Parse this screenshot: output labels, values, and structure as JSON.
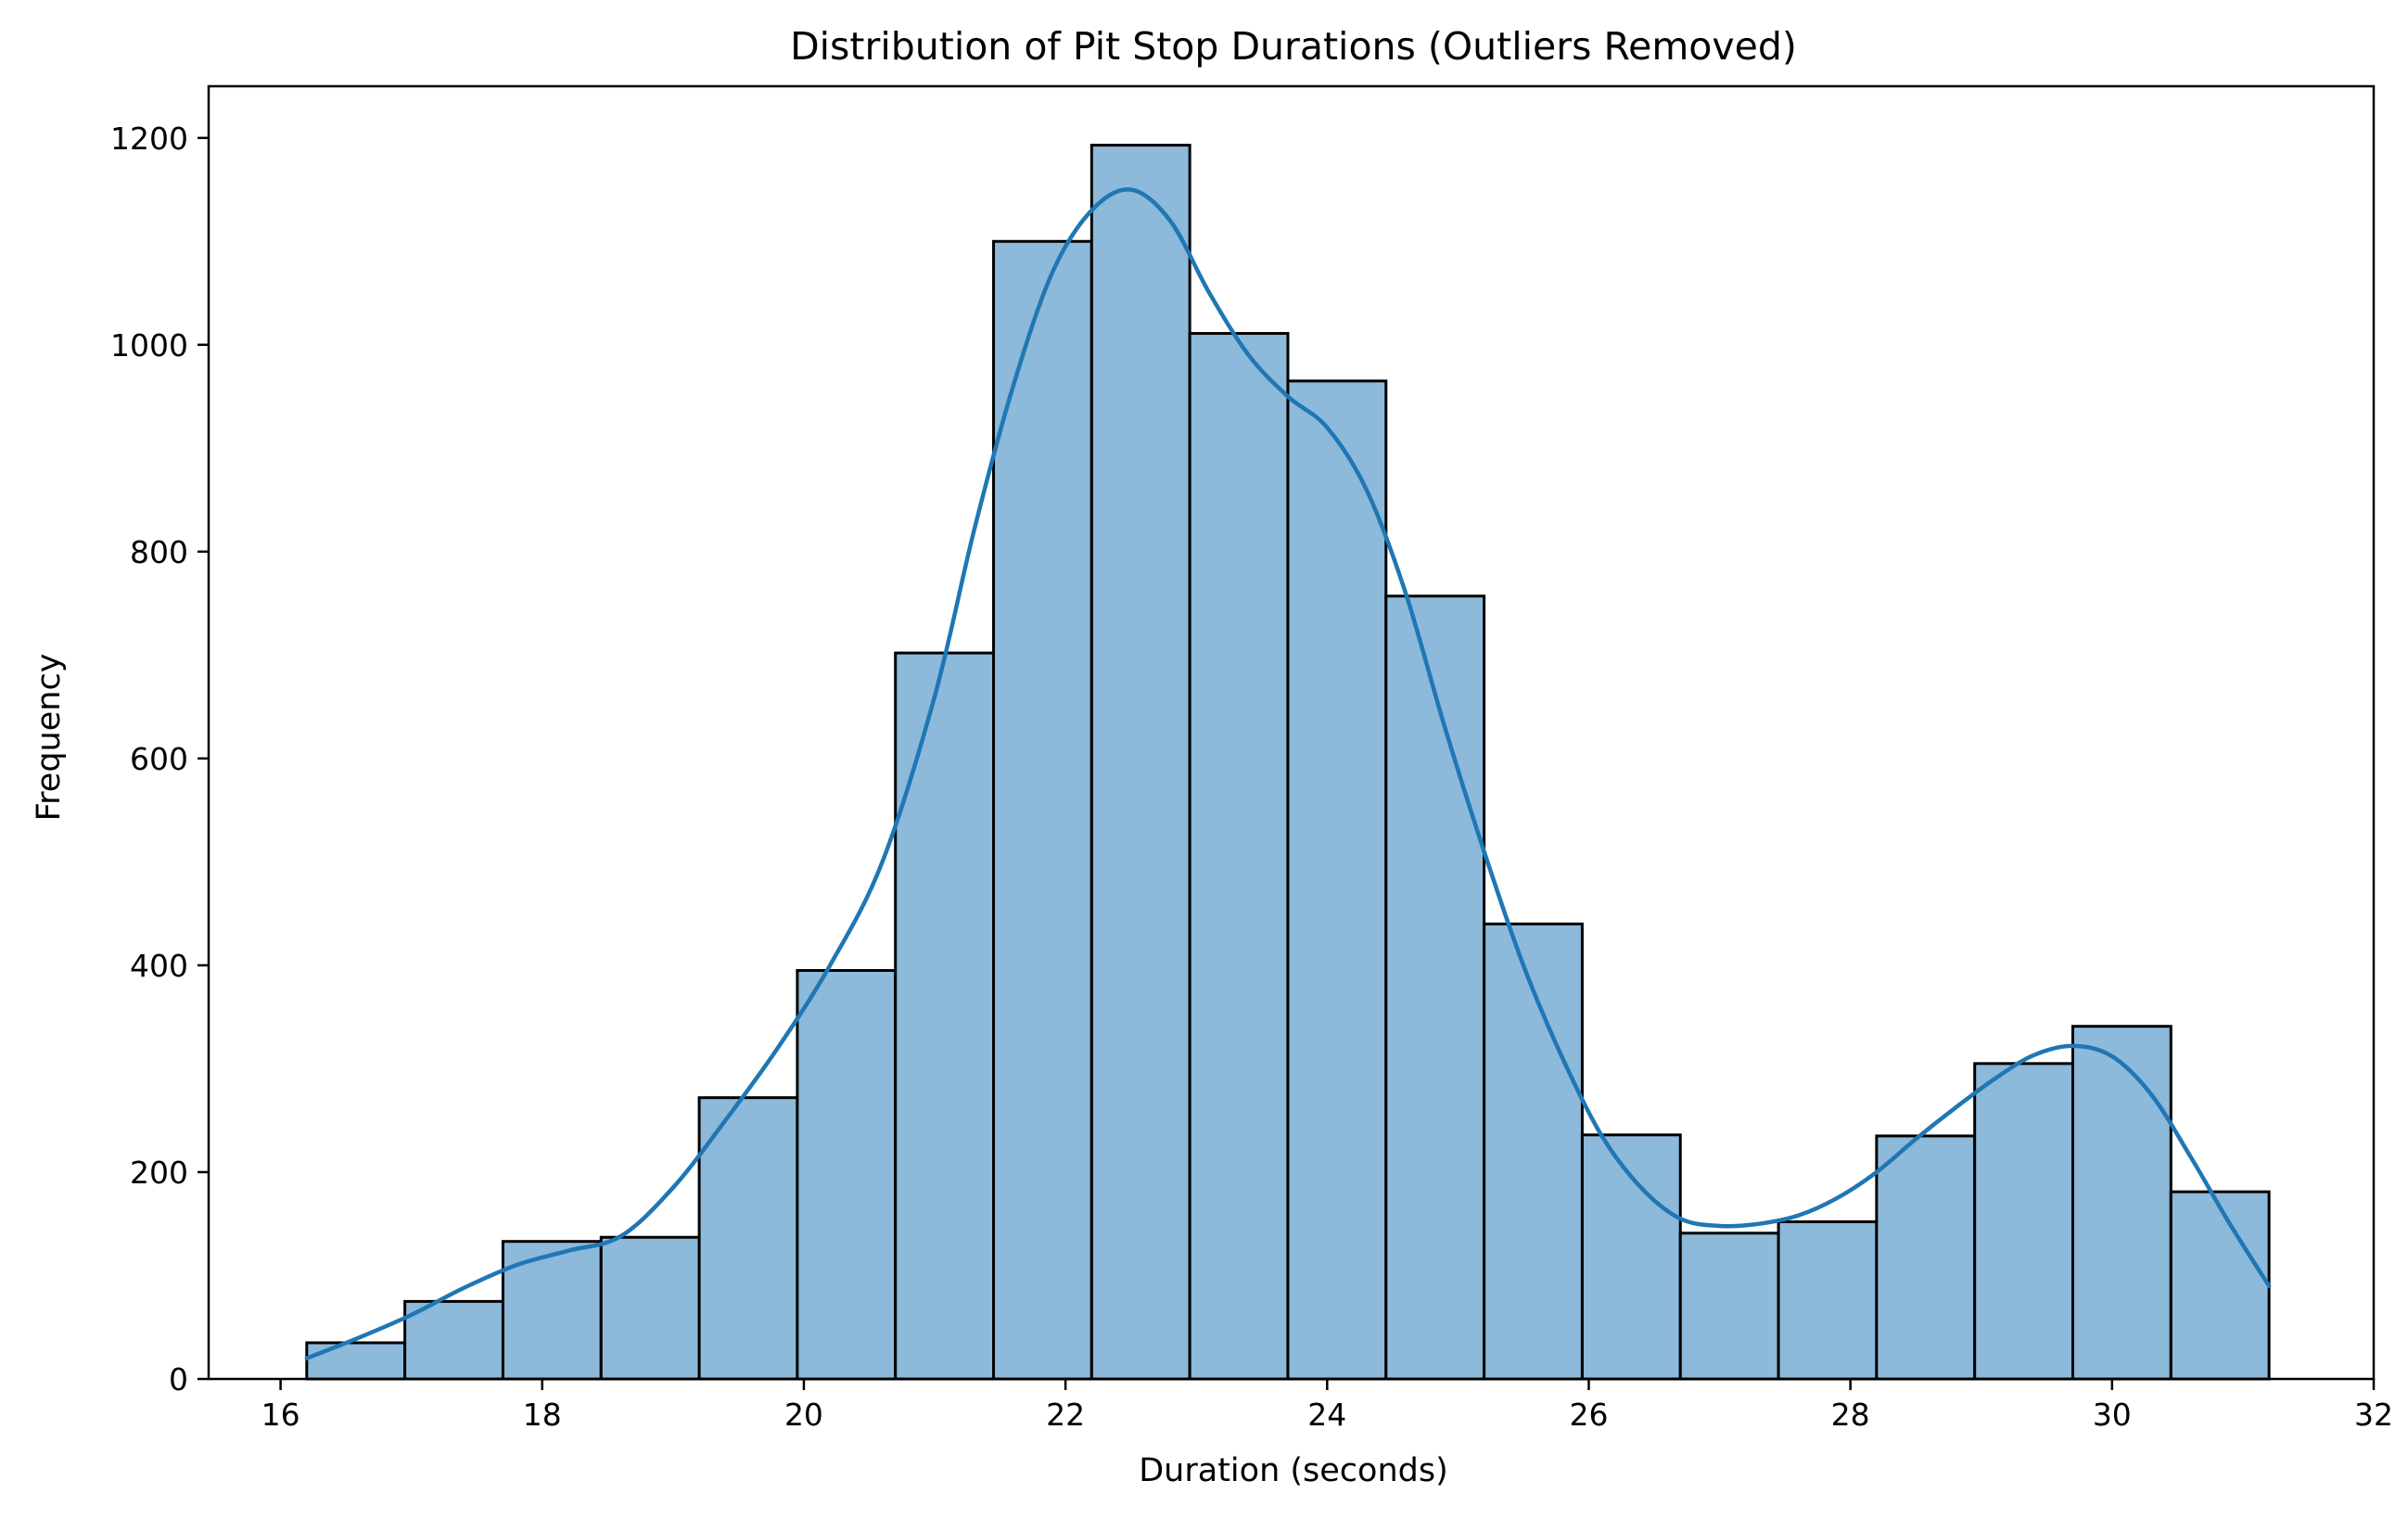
{
  "chart_data": {
    "type": "histogram",
    "title": "Distribution of Pit Stop Durations (Outliers Removed)",
    "xlabel": "Duration (seconds)",
    "ylabel": "Frequency",
    "xlim": [
      15.45,
      32.0
    ],
    "ylim": [
      0,
      1250
    ],
    "xticks": [
      16,
      18,
      20,
      22,
      24,
      26,
      28,
      30,
      32
    ],
    "yticks": [
      0,
      200,
      400,
      600,
      800,
      1000,
      1200
    ],
    "bin_edges": [
      16.2,
      16.95,
      17.7,
      18.45,
      19.2,
      19.95,
      20.7,
      21.45,
      22.2,
      22.95,
      23.7,
      24.45,
      25.2,
      25.95,
      26.7,
      27.45,
      28.2,
      28.95,
      29.7,
      30.45,
      31.2
    ],
    "values": [
      35,
      75,
      133,
      137,
      272,
      395,
      702,
      1100,
      1193,
      1011,
      965,
      757,
      440,
      236,
      141,
      152,
      235,
      305,
      341,
      181
    ],
    "kde": {
      "x": [
        16.2,
        16.6,
        17.0,
        17.4,
        17.8,
        18.2,
        18.6,
        19.0,
        19.4,
        19.8,
        20.2,
        20.6,
        21.0,
        21.3,
        21.6,
        21.9,
        22.2,
        22.5,
        22.8,
        23.1,
        23.4,
        23.7,
        24.0,
        24.3,
        24.6,
        24.9,
        25.2,
        25.5,
        25.8,
        26.1,
        26.4,
        26.7,
        27.0,
        27.3,
        27.6,
        27.9,
        28.2,
        28.5,
        28.8,
        29.1,
        29.4,
        29.7,
        30.0,
        30.3,
        30.6,
        30.9,
        31.2
      ],
      "y": [
        20,
        40,
        62,
        88,
        110,
        124,
        138,
        185,
        250,
        320,
        400,
        500,
        660,
        820,
        960,
        1070,
        1130,
        1150,
        1120,
        1050,
        990,
        950,
        920,
        860,
        760,
        630,
        510,
        400,
        310,
        235,
        185,
        155,
        148,
        150,
        158,
        175,
        200,
        232,
        262,
        290,
        313,
        322,
        312,
        275,
        215,
        150,
        90
      ]
    },
    "colors": {
      "bar_fill": "#8db9da",
      "bar_edge": "#000000",
      "kde_line": "#1f77b4"
    },
    "grid": false,
    "legend": false
  }
}
